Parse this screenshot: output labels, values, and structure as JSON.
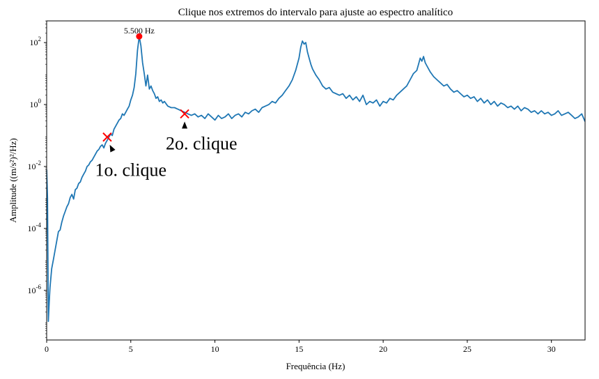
{
  "chart_data": {
    "type": "line",
    "title": "Clique nos extremos do intervalo para ajuste ao espectro analítico",
    "xlabel": "Frequência (Hz)",
    "ylabel": "Amplitude ((m/s²)²/Hz)",
    "xlim": [
      0,
      32
    ],
    "ylim_log10": [
      -7.6,
      2.7
    ],
    "yscale": "log",
    "grid": false,
    "x_ticks": [
      0,
      5,
      10,
      15,
      20,
      25,
      30
    ],
    "x_tick_labels": [
      "0",
      "5",
      "10",
      "15",
      "20",
      "25",
      "30"
    ],
    "y_ticks_log10": [
      2,
      0,
      -2,
      -4,
      -6
    ],
    "y_tick_labels": [
      {
        "base": "10",
        "exp": "2"
      },
      {
        "base": "10",
        "exp": "0"
      },
      {
        "base": "10",
        "exp": "-2"
      },
      {
        "base": "10",
        "exp": "-4"
      },
      {
        "base": "10",
        "exp": "-6"
      }
    ],
    "series": [
      {
        "color": "#1f77b4",
        "x": [
          0,
          0.05,
          0.1,
          0.15,
          0.2,
          0.25,
          0.3,
          0.4,
          0.5,
          0.6,
          0.7,
          0.8,
          0.9,
          1.0,
          1.1,
          1.2,
          1.3,
          1.4,
          1.5,
          1.6,
          1.7,
          1.8,
          1.9,
          2.0,
          2.1,
          2.2,
          2.3,
          2.4,
          2.5,
          2.6,
          2.7,
          2.8,
          2.9,
          3.0,
          3.1,
          3.2,
          3.3,
          3.4,
          3.5,
          3.6,
          3.7,
          3.8,
          3.9,
          4.0,
          4.1,
          4.2,
          4.3,
          4.4,
          4.5,
          4.6,
          4.7,
          4.8,
          4.9,
          5.0,
          5.1,
          5.2,
          5.3,
          5.4,
          5.5,
          5.6,
          5.7,
          5.8,
          5.9,
          6.0,
          6.1,
          6.2,
          6.3,
          6.4,
          6.5,
          6.6,
          6.7,
          6.8,
          6.9,
          7.0,
          7.2,
          7.4,
          7.6,
          7.8,
          8.0,
          8.2,
          8.4,
          8.6,
          8.8,
          9.0,
          9.2,
          9.4,
          9.6,
          9.8,
          10.0,
          10.2,
          10.4,
          10.6,
          10.8,
          11.0,
          11.2,
          11.4,
          11.6,
          11.8,
          12.0,
          12.2,
          12.4,
          12.6,
          12.8,
          13.0,
          13.2,
          13.4,
          13.6,
          13.8,
          14.0,
          14.2,
          14.4,
          14.6,
          14.8,
          15.0,
          15.1,
          15.2,
          15.3,
          15.4,
          15.5,
          15.6,
          15.7,
          15.8,
          16.0,
          16.2,
          16.4,
          16.6,
          16.8,
          17.0,
          17.2,
          17.4,
          17.6,
          17.8,
          18.0,
          18.2,
          18.4,
          18.6,
          18.8,
          19.0,
          19.2,
          19.4,
          19.6,
          19.8,
          20.0,
          20.2,
          20.4,
          20.6,
          20.8,
          21.0,
          21.2,
          21.4,
          21.6,
          21.8,
          22.0,
          22.1,
          22.2,
          22.3,
          22.4,
          22.5,
          22.6,
          22.8,
          23.0,
          23.2,
          23.4,
          23.6,
          23.8,
          24.0,
          24.2,
          24.4,
          24.6,
          24.8,
          25.0,
          25.2,
          25.4,
          25.6,
          25.8,
          26.0,
          26.2,
          26.4,
          26.6,
          26.8,
          27.0,
          27.2,
          27.4,
          27.6,
          27.8,
          28.0,
          28.2,
          28.4,
          28.6,
          28.8,
          29.0,
          29.2,
          29.4,
          29.6,
          29.8,
          30.0,
          30.2,
          30.4,
          30.6,
          30.8,
          31.0,
          31.2,
          31.4,
          31.6,
          31.8,
          32.0
        ],
        "y_log10": [
          -2.1,
          -3.0,
          -7.0,
          -6.4,
          -5.9,
          -5.6,
          -5.3,
          -5.0,
          -4.7,
          -4.4,
          -4.1,
          -4.05,
          -3.8,
          -3.6,
          -3.45,
          -3.3,
          -3.2,
          -3.0,
          -2.9,
          -3.05,
          -2.75,
          -2.7,
          -2.55,
          -2.5,
          -2.35,
          -2.25,
          -2.15,
          -2.0,
          -1.95,
          -1.85,
          -1.8,
          -1.7,
          -1.6,
          -1.5,
          -1.45,
          -1.35,
          -1.3,
          -1.4,
          -1.25,
          -1.15,
          -1.05,
          -0.95,
          -1.0,
          -0.8,
          -0.7,
          -0.6,
          -0.5,
          -0.45,
          -0.3,
          -0.35,
          -0.25,
          -0.15,
          -0.05,
          0.15,
          0.3,
          0.55,
          1.0,
          1.75,
          2.2,
          1.9,
          1.35,
          1.0,
          0.6,
          0.95,
          0.5,
          0.6,
          0.45,
          0.35,
          0.2,
          0.25,
          0.1,
          0.15,
          0.05,
          0.1,
          -0.05,
          -0.1,
          -0.1,
          -0.15,
          -0.2,
          -0.25,
          -0.3,
          -0.35,
          -0.3,
          -0.4,
          -0.35,
          -0.45,
          -0.3,
          -0.4,
          -0.5,
          -0.35,
          -0.45,
          -0.4,
          -0.3,
          -0.45,
          -0.35,
          -0.3,
          -0.4,
          -0.25,
          -0.3,
          -0.2,
          -0.15,
          -0.25,
          -0.1,
          -0.05,
          0.0,
          0.1,
          0.05,
          0.2,
          0.3,
          0.45,
          0.6,
          0.8,
          1.1,
          1.5,
          1.85,
          2.05,
          1.95,
          2.0,
          1.7,
          1.5,
          1.3,
          1.15,
          0.95,
          0.8,
          0.6,
          0.5,
          0.55,
          0.4,
          0.35,
          0.3,
          0.35,
          0.2,
          0.3,
          0.15,
          0.25,
          0.1,
          0.3,
          0.0,
          0.1,
          0.05,
          0.15,
          -0.05,
          0.1,
          0.05,
          0.2,
          0.15,
          0.3,
          0.4,
          0.5,
          0.6,
          0.8,
          1.0,
          1.1,
          1.3,
          1.5,
          1.4,
          1.55,
          1.35,
          1.25,
          1.05,
          0.9,
          0.8,
          0.7,
          0.6,
          0.65,
          0.5,
          0.4,
          0.45,
          0.35,
          0.25,
          0.3,
          0.2,
          0.25,
          0.1,
          0.2,
          0.05,
          0.15,
          0.0,
          0.1,
          -0.05,
          0.05,
          0.0,
          -0.1,
          -0.05,
          -0.15,
          -0.05,
          -0.2,
          -0.1,
          -0.15,
          -0.25,
          -0.2,
          -0.3,
          -0.2,
          -0.3,
          -0.25,
          -0.35,
          -0.3,
          -0.2,
          -0.35,
          -0.3,
          -0.25,
          -0.35,
          -0.45,
          -0.4,
          -0.3,
          -0.55
        ]
      }
    ],
    "peak_marker": {
      "x": 5.5,
      "y_log10": 2.2,
      "color": "#ff0000"
    },
    "peak_label": "5.500 Hz",
    "click_markers": [
      {
        "x": 3.6,
        "y_log10": -1.05,
        "color": "#ff0000"
      },
      {
        "x": 8.2,
        "y_log10": -0.3,
        "color": "#ff0000"
      }
    ],
    "annotations": [
      {
        "text": "1o. clique",
        "target_x": 3.75,
        "target_y_log10": -1.3,
        "text_x": 5.0,
        "text_y_log10": -2.3,
        "anchor": "middle"
      },
      {
        "text": "2o. clique",
        "target_x": 8.2,
        "target_y_log10": -0.55,
        "text_x": 9.2,
        "text_y_log10": -1.45,
        "anchor": "middle"
      }
    ]
  }
}
